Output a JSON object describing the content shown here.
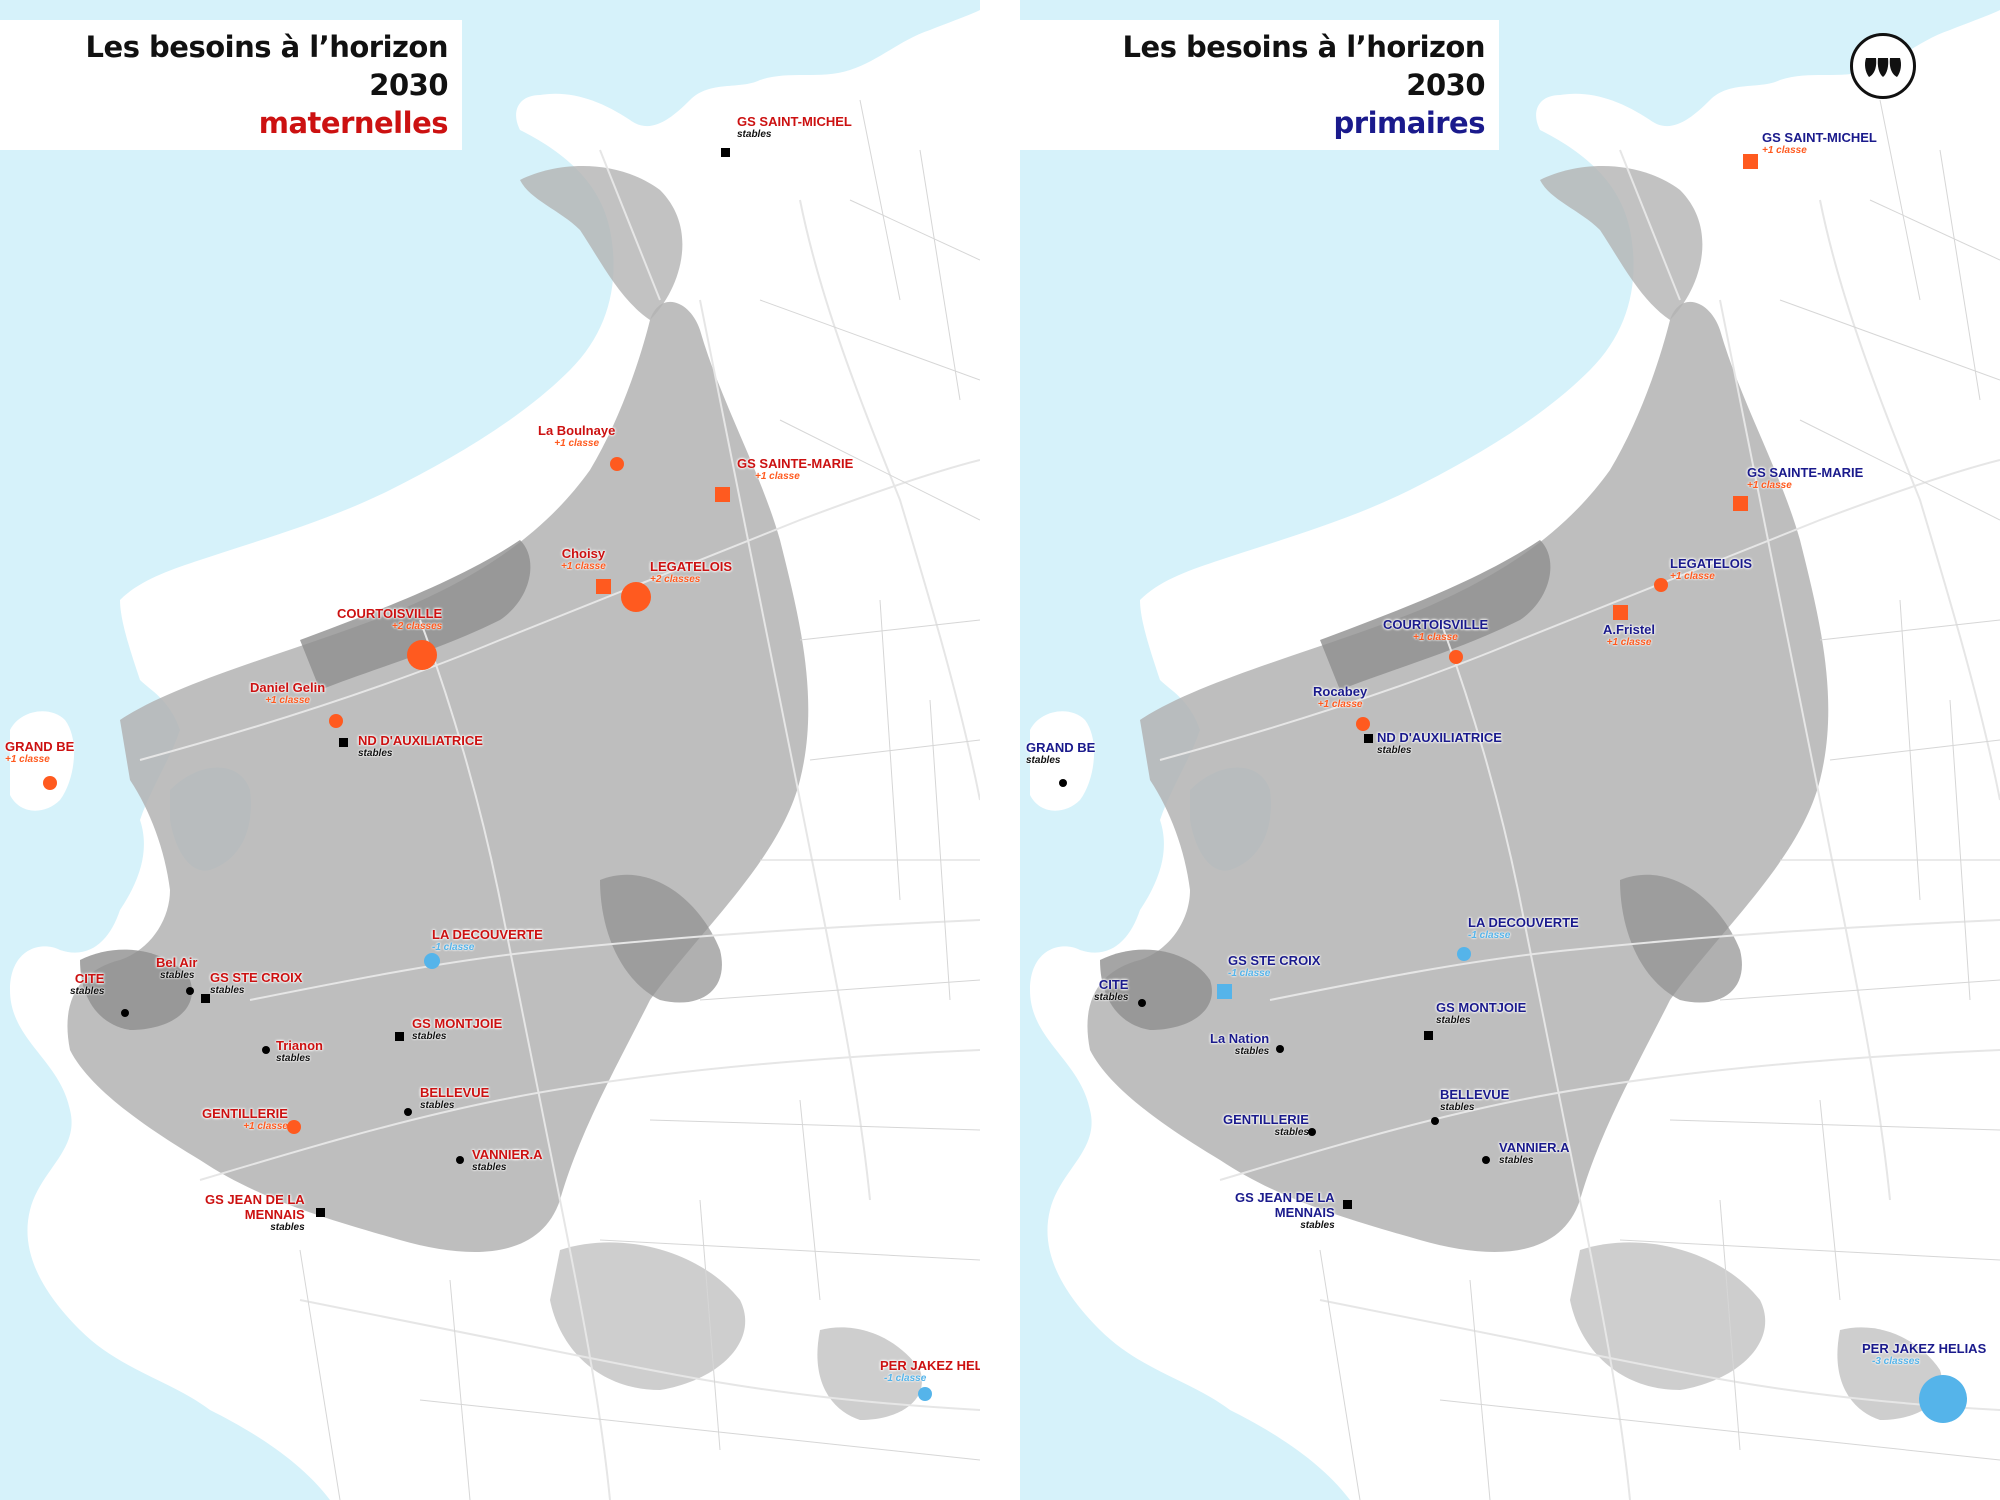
{
  "colors": {
    "sea": "#d6f2fa",
    "land": "#ffffff",
    "urban": "#9a9a9a",
    "red_label": "#cc1111",
    "blue_label": "#1a1a8c",
    "increase_marker": "#ff5a1f",
    "decrease_marker": "#55b4ea",
    "stable_marker": "#000000"
  },
  "legend_icons": {
    "increase": "orange-circle-or-square",
    "decrease": "blue-circle-or-square",
    "stable": "black-dot-or-square",
    "logo": "brand-logo-icon"
  },
  "left": {
    "title_line1": "Les besoins à l’horizon 2030",
    "title_line2": "maternelles",
    "title_color": "#cc1111",
    "schools": [
      {
        "name": "GS SAINT-MICHEL",
        "status": "stables",
        "kind": "stable"
      },
      {
        "name": "La Boulnaye",
        "status": "+1 classe",
        "kind": "increase"
      },
      {
        "name": "GS SAINTE-MARIE",
        "status": "+1 classe",
        "kind": "increase"
      },
      {
        "name": "Choisy",
        "status": "+1 classe",
        "kind": "increase"
      },
      {
        "name": "LEGATELOIS",
        "status": "+2 classes",
        "kind": "increase"
      },
      {
        "name": "COURTOISVILLE",
        "status": "+2 classes",
        "kind": "increase"
      },
      {
        "name": "Daniel Gelin",
        "status": "+1 classe",
        "kind": "increase"
      },
      {
        "name": "ND D'AUXILIATRICE",
        "status": "stables",
        "kind": "stable"
      },
      {
        "name": "GRAND BE",
        "status": "+1 classe",
        "kind": "increase"
      },
      {
        "name": "LA DECOUVERTE",
        "status": "-1 classe",
        "kind": "decrease"
      },
      {
        "name": "CITE",
        "status": "stables",
        "kind": "stable"
      },
      {
        "name": "Bel Air",
        "status": "stables",
        "kind": "stable"
      },
      {
        "name": "GS STE CROIX",
        "status": "stables",
        "kind": "stable"
      },
      {
        "name": "Trianon",
        "status": "stables",
        "kind": "stable"
      },
      {
        "name": "GS MONTJOIE",
        "status": "stables",
        "kind": "stable"
      },
      {
        "name": "BELLEVUE",
        "status": "stables",
        "kind": "stable"
      },
      {
        "name": "GENTILLERIE",
        "status": "+1 classe",
        "kind": "increase"
      },
      {
        "name": "VANNIER.A",
        "status": "stables",
        "kind": "stable"
      },
      {
        "name": "GS JEAN DE LA",
        "name2": "MENNAIS",
        "status": "stables",
        "kind": "stable"
      },
      {
        "name": "PER JAKEZ HELIAS",
        "status": "-1 classe",
        "kind": "decrease"
      }
    ]
  },
  "right": {
    "title_line1": "Les besoins à l’horizon 2030",
    "title_line2": "primaires",
    "title_color": "#1a1a8c",
    "schools": [
      {
        "name": "GS SAINT-MICHEL",
        "status": "+1 classe",
        "kind": "increase"
      },
      {
        "name": "GS SAINTE-MARIE",
        "status": "+1 classe",
        "kind": "increase"
      },
      {
        "name": "LEGATELOIS",
        "status": "+1 classe",
        "kind": "increase"
      },
      {
        "name": "A.Fristel",
        "status": "+1 classe",
        "kind": "increase"
      },
      {
        "name": "COURTOISVILLE",
        "status": "+1 classe",
        "kind": "increase"
      },
      {
        "name": "Rocabey",
        "status": "+1 classe",
        "kind": "increase"
      },
      {
        "name": "ND D'AUXILIATRICE",
        "status": "stables",
        "kind": "stable"
      },
      {
        "name": "GRAND BE",
        "status": "stables",
        "kind": "stable"
      },
      {
        "name": "LA DECOUVERTE",
        "status": "-1 classe",
        "kind": "decrease"
      },
      {
        "name": "GS STE CROIX",
        "status": "-1 classe",
        "kind": "decrease"
      },
      {
        "name": "CITE",
        "status": "stables",
        "kind": "stable"
      },
      {
        "name": "GS MONTJOIE",
        "status": "stables",
        "kind": "stable"
      },
      {
        "name": "La Nation",
        "status": "stables",
        "kind": "stable"
      },
      {
        "name": "BELLEVUE",
        "status": "stables",
        "kind": "stable"
      },
      {
        "name": "GENTILLERIE",
        "status": "stables",
        "kind": "stable"
      },
      {
        "name": "VANNIER.A",
        "status": "stables",
        "kind": "stable"
      },
      {
        "name": "GS JEAN DE LA",
        "name2": "MENNAIS",
        "status": "stables",
        "kind": "stable"
      },
      {
        "name": "PER JAKEZ HELIAS",
        "status": "-3 classes",
        "kind": "decrease"
      }
    ]
  }
}
